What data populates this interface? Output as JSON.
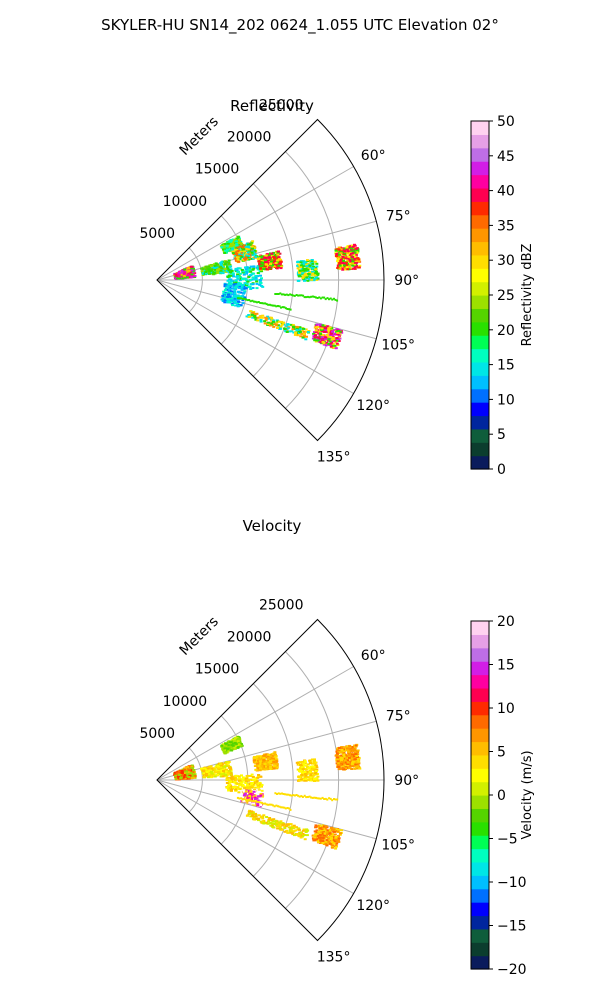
{
  "title": "SKYLER-HU  SN14_202  0624_1.055 UTC Elevation 02°",
  "chart_data": [
    {
      "type": "polar-sector",
      "title": "Reflectivity",
      "range_label": "Meters",
      "range_ticks": [
        5000,
        10000,
        15000,
        20000,
        25000
      ],
      "range_max": 25000,
      "theta_ticks": [
        "60°",
        "75°",
        "90°",
        "105°",
        "120°",
        "135°"
      ],
      "theta_range": [
        45,
        135
      ],
      "grid": true,
      "colorbar": {
        "label": "Reflectivity dBZ",
        "min": 0,
        "max": 50,
        "ticks": [
          0,
          5,
          10,
          15,
          20,
          25,
          30,
          35,
          40,
          45,
          50
        ],
        "colors": [
          "#0a1b5c",
          "#0b3d2e",
          "#0f5d3b",
          "#00269e",
          "#0000ff",
          "#0070ff",
          "#00bfff",
          "#00e6e6",
          "#00ffc0",
          "#00ff55",
          "#29e000",
          "#55d400",
          "#9ce000",
          "#d2f000",
          "#ffff00",
          "#ffde00",
          "#ffbd00",
          "#ff9600",
          "#ff6a00",
          "#ff2a00",
          "#ff0050",
          "#ff00a0",
          "#d21ee6",
          "#be6ee6",
          "#e6a0e6",
          "#ffd2f0"
        ]
      }
    },
    {
      "type": "polar-sector",
      "title": "Velocity",
      "range_label": "Meters",
      "range_ticks": [
        5000,
        10000,
        15000,
        20000,
        25000
      ],
      "range_max": 25000,
      "theta_ticks": [
        "60°",
        "75°",
        "90°",
        "105°",
        "120°",
        "135°"
      ],
      "theta_range": [
        45,
        135
      ],
      "grid": true,
      "colorbar": {
        "label": "Velocity (m/s)",
        "min": -20,
        "max": 20,
        "ticks": [
          -20,
          -15,
          -10,
          -5,
          0,
          5,
          10,
          15,
          20
        ],
        "colors": [
          "#0a1b5c",
          "#0b3d2e",
          "#0f5d3b",
          "#00269e",
          "#0000ff",
          "#0070ff",
          "#00bfff",
          "#00e6e6",
          "#00ffc0",
          "#00ff55",
          "#29e000",
          "#55d400",
          "#9ce000",
          "#d2f000",
          "#ffff00",
          "#ffde00",
          "#ffbd00",
          "#ff9600",
          "#ff6a00",
          "#ff2a00",
          "#ff0050",
          "#ff00a0",
          "#d21ee6",
          "#be6ee6",
          "#e6a0e6",
          "#ffd2f0"
        ]
      }
    }
  ]
}
